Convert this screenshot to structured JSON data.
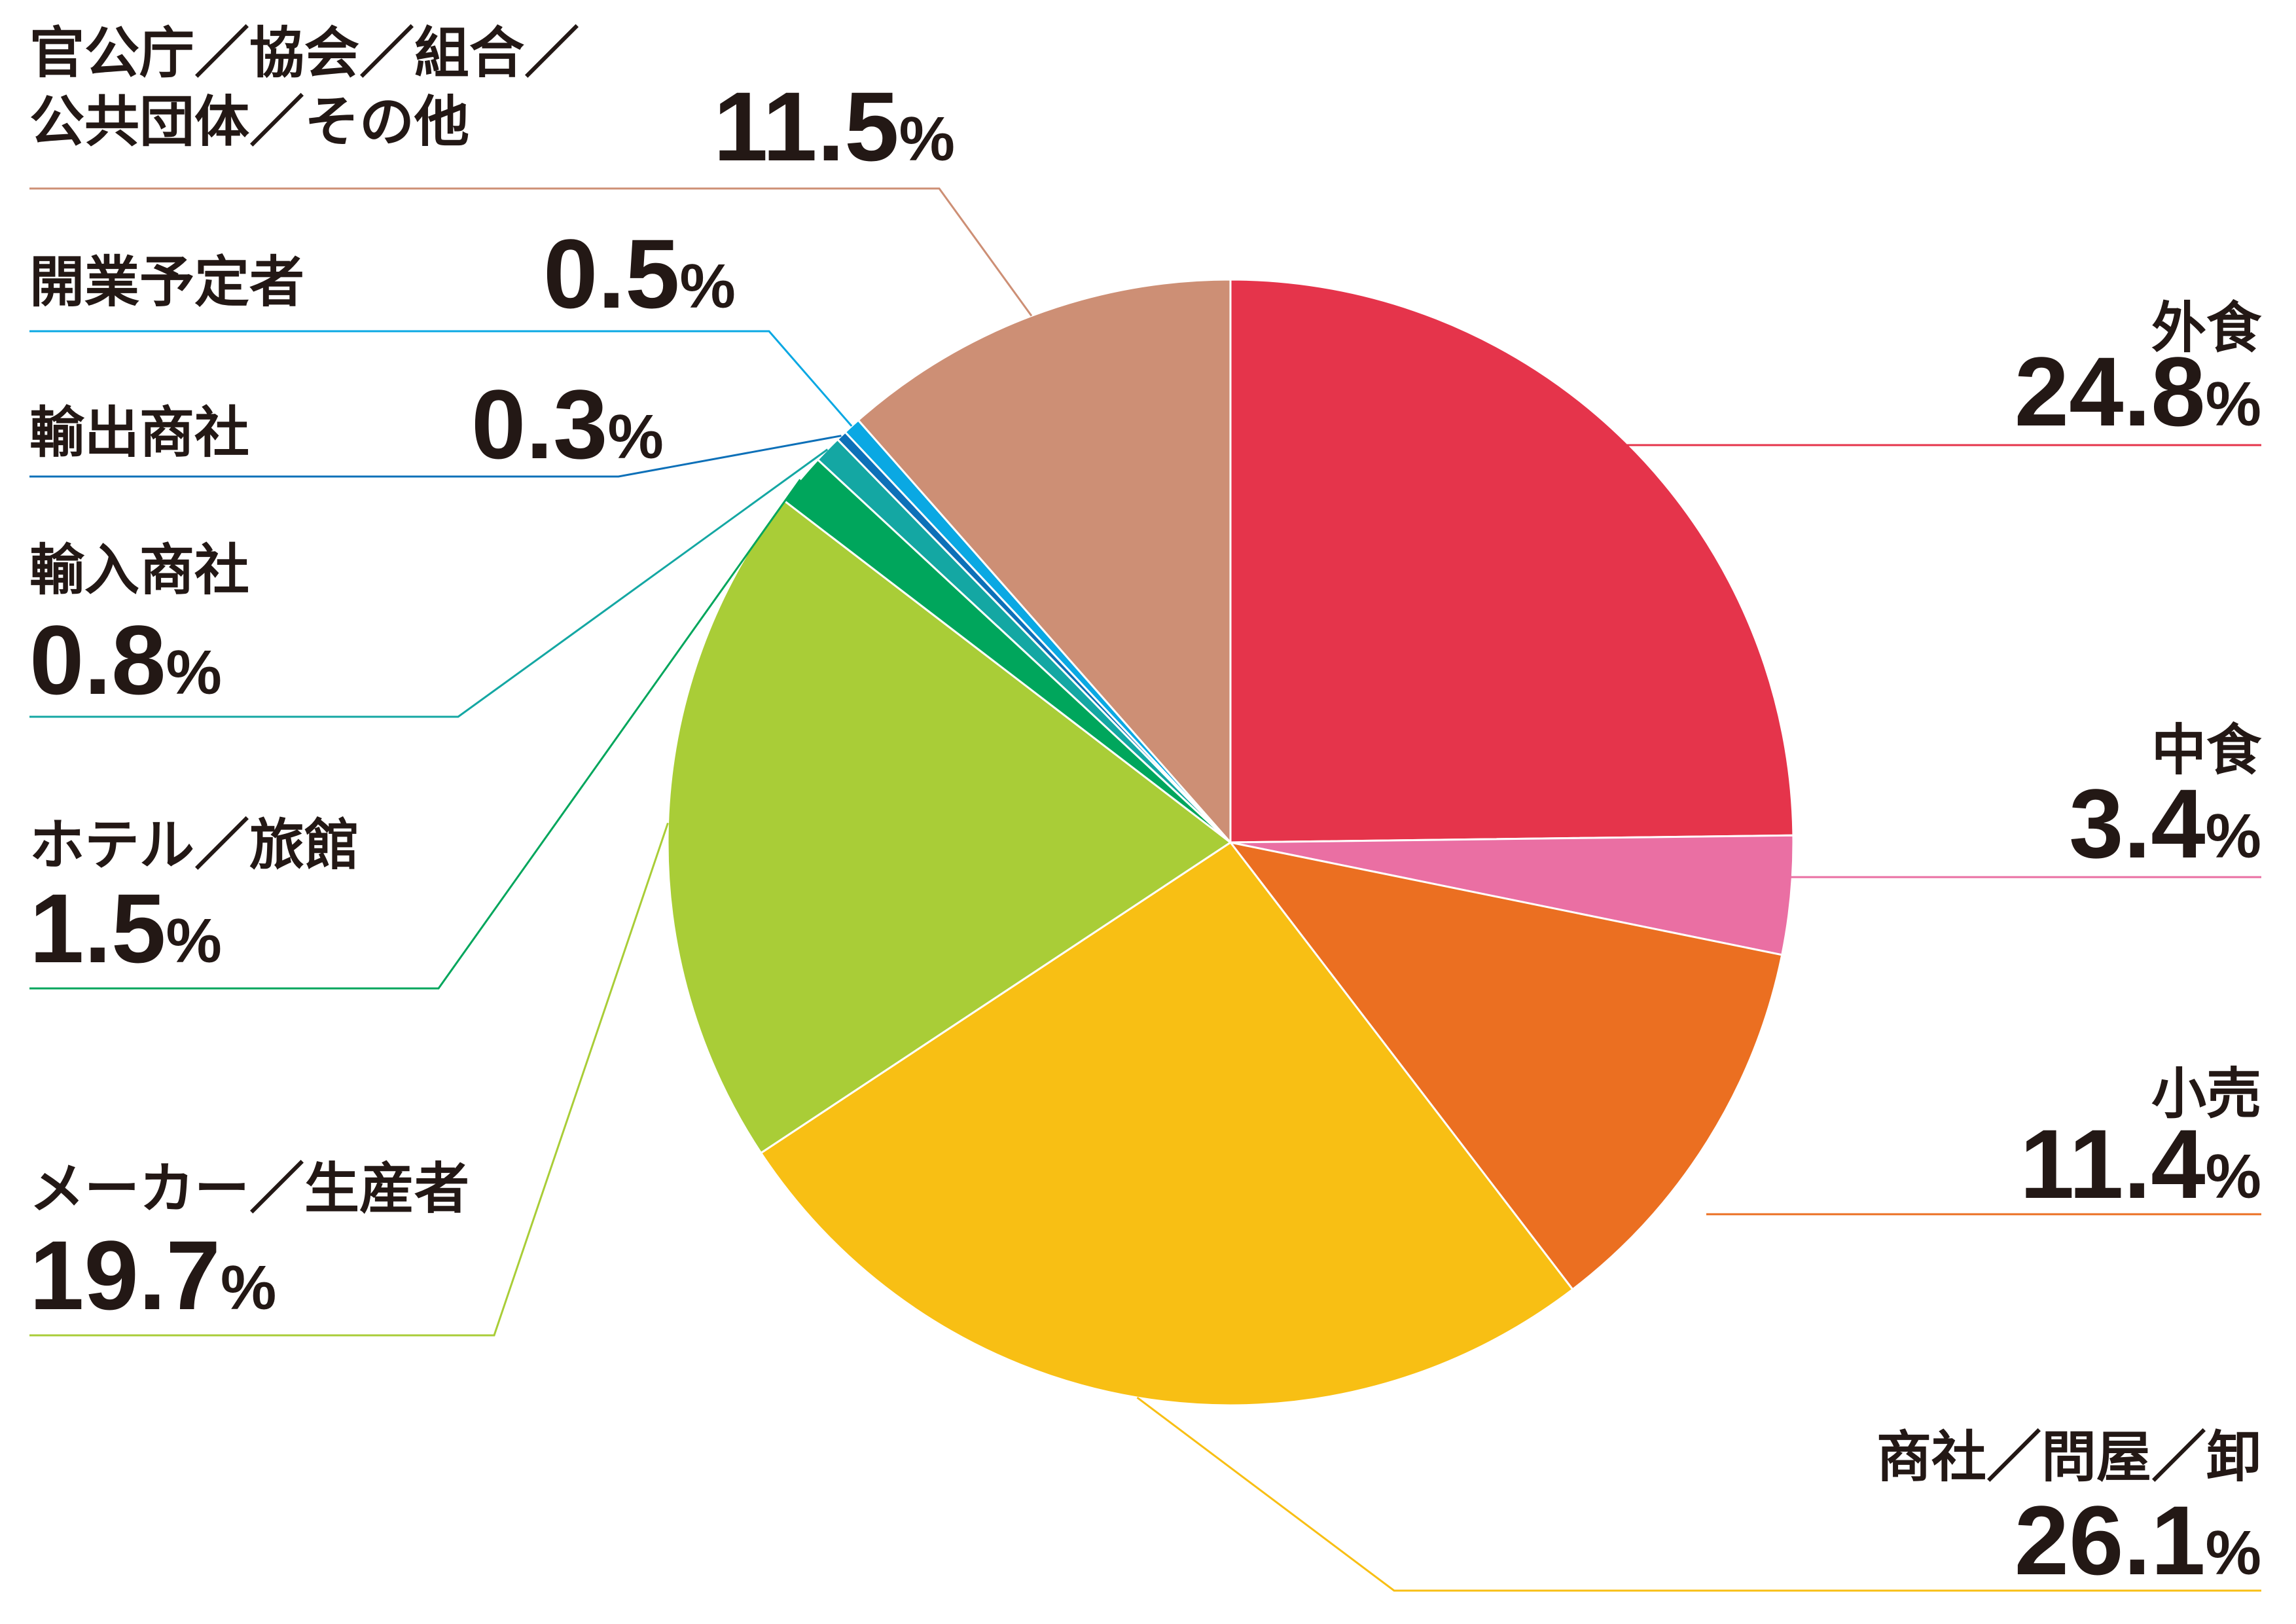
{
  "chart_data": {
    "type": "pie",
    "start_angle_deg": 0,
    "direction": "clockwise",
    "slices": [
      {
        "name": "外食",
        "value": 24.8,
        "label": "24.8",
        "color": "#e5344b"
      },
      {
        "name": "中食",
        "value": 3.4,
        "label": "3.4",
        "color": "#ea6fa3"
      },
      {
        "name": "小売",
        "value": 11.4,
        "label": "11.4",
        "color": "#eb6f21"
      },
      {
        "name": "商社／問屋／卸",
        "value": 26.1,
        "label": "26.1",
        "color": "#f8bf14"
      },
      {
        "name": "メーカー／生産者",
        "value": 19.7,
        "label": "19.7",
        "color": "#a9cd37"
      },
      {
        "name": "ホテル／旅館",
        "value": 1.5,
        "label": "1.5",
        "color": "#00a65c"
      },
      {
        "name": "輸入商社",
        "value": 0.8,
        "label": "0.8",
        "color": "#14a7a3"
      },
      {
        "name": "輸出商社",
        "value": 0.3,
        "label": "0.3",
        "color": "#0d70b8"
      },
      {
        "name": "開業予定者",
        "value": 0.5,
        "label": "0.5",
        "color": "#0aa8e3"
      },
      {
        "name": "官公庁／協会／組合／公共団体／その他",
        "value": 11.5,
        "label": "11.5",
        "color": "#cd8f75"
      }
    ],
    "label_lines": [
      [
        "外食"
      ],
      [
        "中食"
      ],
      [
        "小売"
      ],
      [
        "商社／問屋／卸"
      ],
      [
        "メーカー／生産者"
      ],
      [
        "ホテル／旅館"
      ],
      [
        "輸入商社"
      ],
      [
        "輸出商社"
      ],
      [
        "開業予定者"
      ],
      [
        "官公庁／協会／組合／",
        "公共団体／その他"
      ]
    ],
    "unit": "%"
  }
}
